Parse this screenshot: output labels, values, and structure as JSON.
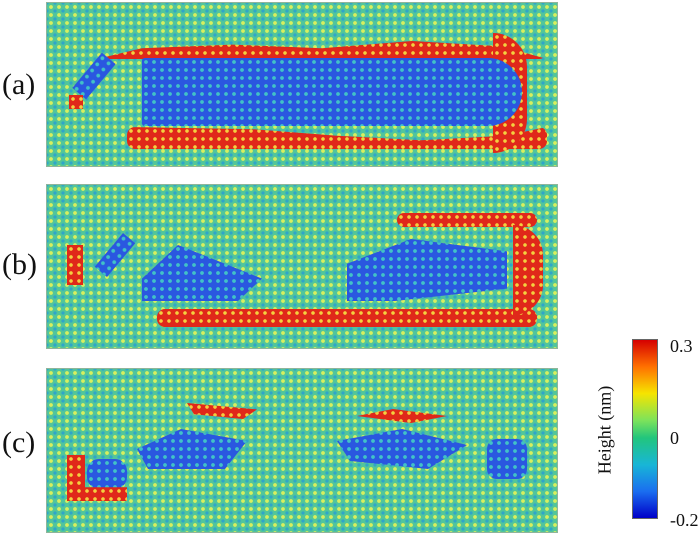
{
  "panels": [
    {
      "label": "(a)"
    },
    {
      "label": "(b)"
    },
    {
      "label": "(c)"
    }
  ],
  "colorbar": {
    "title": "Height (nm)",
    "max_label": "0.3",
    "mid_label": "0",
    "min_label": "-0.2",
    "colors": [
      "#d50000",
      "#ff7000",
      "#f6e400",
      "#7ee35a",
      "#22c57d",
      "#18b6d6",
      "#1a6ef0",
      "#0000c8"
    ]
  }
}
